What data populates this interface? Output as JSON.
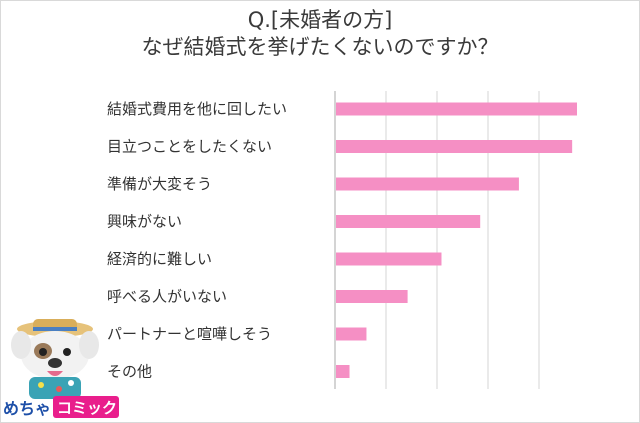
{
  "title": {
    "line1": "Q.[未婚者の方]",
    "line2": "なぜ結婚式を挙げたくないのですか？"
  },
  "logo": {
    "text_left": "めちゃ",
    "text_right": "コミック",
    "accent": "#e91e8c"
  },
  "colors": {
    "bar": "#f58fc4",
    "grid": "#d6d6d6",
    "axis": "#aaaaaa",
    "text": "#333333"
  },
  "chart_data": {
    "type": "bar",
    "orientation": "horizontal",
    "categories": [
      "結婚式費用を他に回したい",
      "目立つことをしたくない",
      "準備が大変そう",
      "興味がない",
      "経済的に難しい",
      "呼べる人がいない",
      "パートナーと喧嘩しそう",
      "その他"
    ],
    "values": [
      100,
      98,
      76,
      60,
      44,
      30,
      13,
      6
    ],
    "xlim": [
      0,
      100
    ],
    "grid": true,
    "xlabel": "",
    "ylabel": ""
  }
}
